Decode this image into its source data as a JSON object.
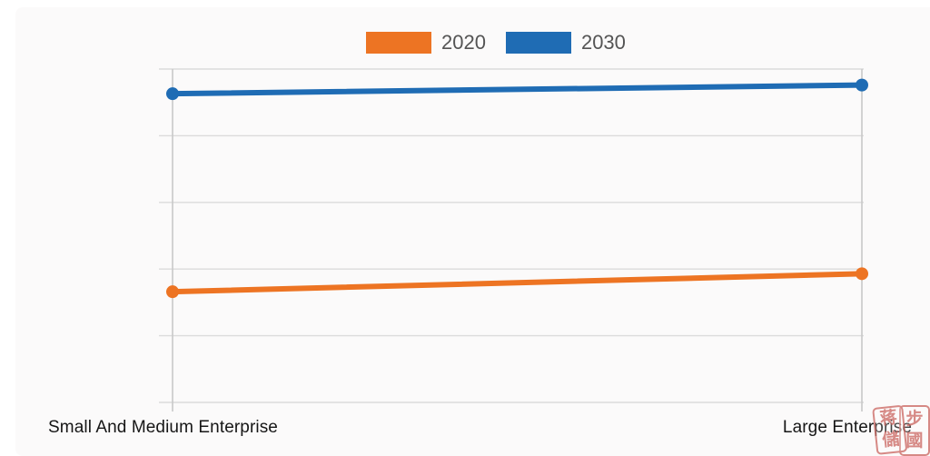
{
  "legend": {
    "items": [
      {
        "label": "2020",
        "color": "#ed7423"
      },
      {
        "label": "2030",
        "color": "#1f6cb4"
      }
    ]
  },
  "x_axis": {
    "labels": [
      "Small And Medium Enterprise",
      "Large Enterprise"
    ]
  },
  "watermark": {
    "seals": [
      {
        "top": "蒋",
        "bottom": "儲"
      },
      {
        "top": "步",
        "bottom": "國"
      }
    ],
    "color": "#cd6e68"
  },
  "chart_data": {
    "type": "line",
    "categories": [
      "Small And Medium Enterprise",
      "Large Enterprise"
    ],
    "series": [
      {
        "name": "2020",
        "color": "#ed7423",
        "values": [
          1.66,
          1.93
        ]
      },
      {
        "name": "2030",
        "color": "#1f6cb4",
        "values": [
          4.63,
          4.76
        ]
      }
    ],
    "title": "",
    "xlabel": "",
    "ylabel": "",
    "ylim": [
      0,
      5
    ],
    "y_gridline_count": 6,
    "grid": "horizontal",
    "legend_position": "top",
    "marker": "circle"
  }
}
